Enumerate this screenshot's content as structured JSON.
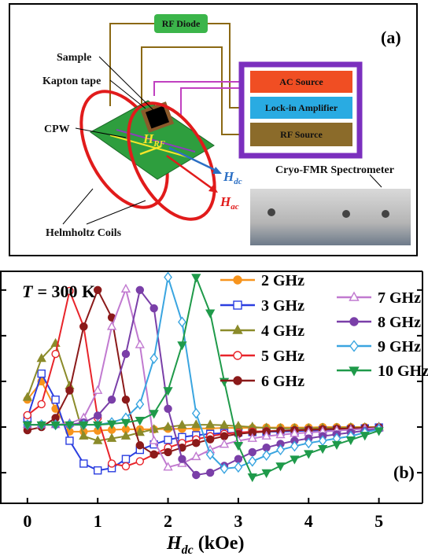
{
  "diagram": {
    "panel_label": "(a)",
    "rf_diode": "RF Diode",
    "sample": "Sample",
    "kapton_tape": "Kapton tape",
    "cpw": "CPW",
    "helmholtz_coils": "Helmholtz Coils",
    "h_rf": {
      "symbol": "H",
      "subscript": "RF"
    },
    "h_dc": {
      "symbol": "H",
      "subscript": "dc"
    },
    "h_ac": {
      "symbol": "H",
      "subscript": "ac"
    },
    "instruments": [
      "AC Source",
      "Lock-in Amplifier",
      "RF Source"
    ],
    "spectrometer": "Cryo-FMR Spectrometer"
  },
  "chart_data": {
    "type": "line",
    "panel_label": "(b)",
    "annotation": {
      "symbol": "T",
      "text": "= 300 K"
    },
    "xlabel": {
      "symbol": "H",
      "subscript": "dc",
      "unit": "(kOe)"
    },
    "x": [
      0,
      0.2,
      0.4,
      0.6,
      0.8,
      1.0,
      1.2,
      1.4,
      1.6,
      1.8,
      2.0,
      2.2,
      2.4,
      2.6,
      2.8,
      3.0,
      3.2,
      3.4,
      3.6,
      3.8,
      4.0,
      4.2,
      4.4,
      4.6,
      4.8,
      5.0
    ],
    "xlim": [
      -0.39,
      5.62
    ],
    "xticks": [
      0,
      1,
      2,
      3,
      4,
      5
    ],
    "ylim": [
      -1.67,
      3.41
    ],
    "yticks": [
      -1,
      0,
      1,
      2,
      3
    ],
    "series": [
      {
        "name": "2 GHz",
        "color": "#f7941d",
        "marker": "circle",
        "filled": true,
        "values": [
          0.6,
          1.0,
          0.4,
          -0.1,
          -0.1,
          -0.08,
          -0.06,
          -0.05,
          -0.05,
          -0.05,
          -0.04,
          -0.04,
          -0.03,
          -0.03,
          -0.02,
          -0.02,
          -0.02,
          -0.01,
          -0.01,
          -0.01,
          -0.01,
          0,
          0,
          0,
          0,
          0
        ]
      },
      {
        "name": "3 GHz",
        "color": "#2b3ee0",
        "marker": "square",
        "filled": false,
        "values": [
          0.2,
          1.17,
          0.6,
          -0.3,
          -0.8,
          -0.95,
          -0.9,
          -0.7,
          -0.5,
          -0.38,
          -0.28,
          -0.22,
          -0.18,
          -0.15,
          -0.13,
          -0.12,
          -0.11,
          -0.1,
          -0.1,
          -0.09,
          -0.08,
          -0.07,
          -0.06,
          -0.05,
          -0.03,
          -0.01
        ]
      },
      {
        "name": "4 GHz",
        "color": "#8b8b2a",
        "marker": "triangle",
        "filled": true,
        "values": [
          0.65,
          1.5,
          1.83,
          0.9,
          -0.2,
          -0.3,
          -0.25,
          -0.2,
          -0.12,
          -0.05,
          0,
          0.04,
          0.05,
          0.05,
          0.04,
          0.02,
          0,
          -0.02,
          -0.03,
          -0.03,
          -0.03,
          -0.02,
          -0.02,
          -0.01,
          -0.01,
          0
        ]
      },
      {
        "name": "5 GHz",
        "color": "#e8242a",
        "marker": "circle",
        "filled": false,
        "values": [
          0.26,
          0.5,
          1.6,
          2.98,
          2.2,
          0.2,
          -0.8,
          -0.86,
          -0.75,
          -0.6,
          -0.45,
          -0.35,
          -0.27,
          -0.2,
          -0.15,
          -0.12,
          -0.1,
          -0.09,
          -0.08,
          -0.07,
          -0.06,
          -0.05,
          -0.04,
          -0.03,
          -0.02,
          -0.01
        ]
      },
      {
        "name": "6 GHz",
        "color": "#8b1a1a",
        "marker": "circle",
        "filled": true,
        "values": [
          -0.07,
          0,
          0.2,
          0.8,
          2.2,
          3.0,
          2.4,
          0.6,
          -0.4,
          -0.6,
          -0.55,
          -0.45,
          -0.35,
          -0.27,
          -0.2,
          -0.15,
          -0.12,
          -0.1,
          -0.08,
          -0.07,
          -0.06,
          -0.05,
          -0.04,
          -0.03,
          -0.02,
          -0.01
        ]
      },
      {
        "name": "7 GHz",
        "color": "#c17ad0",
        "marker": "triangle",
        "filled": false,
        "values": [
          0.05,
          0.05,
          0.05,
          0.08,
          0.2,
          0.8,
          2.2,
          3.02,
          1.8,
          -0.3,
          -0.88,
          -0.8,
          -0.65,
          -0.5,
          -0.38,
          -0.3,
          -0.25,
          -0.2,
          -0.17,
          -0.14,
          -0.12,
          -0.1,
          -0.08,
          -0.06,
          -0.04,
          -0.02
        ]
      },
      {
        "name": "8 GHz",
        "color": "#7a3fa8",
        "marker": "circle",
        "filled": true,
        "values": [
          0.05,
          0.05,
          0.05,
          0.05,
          0.1,
          0.25,
          0.6,
          1.6,
          3.0,
          2.6,
          0.4,
          -0.7,
          -1.05,
          -1.0,
          -0.85,
          -0.7,
          -0.55,
          -0.45,
          -0.37,
          -0.3,
          -0.25,
          -0.2,
          -0.16,
          -0.12,
          -0.08,
          -0.04
        ]
      },
      {
        "name": "9 GHz",
        "color": "#3aa5e0",
        "marker": "diamond",
        "filled": false,
        "values": [
          0.05,
          0.05,
          0.05,
          0.05,
          0.05,
          0.05,
          0.1,
          0.2,
          0.5,
          1.5,
          3.28,
          2.3,
          0.3,
          -0.6,
          -0.91,
          -0.88,
          -0.75,
          -0.62,
          -0.5,
          -0.42,
          -0.35,
          -0.3,
          -0.25,
          -0.2,
          -0.12,
          -0.05
        ]
      },
      {
        "name": "10 GHz",
        "color": "#1f9a4a",
        "marker": "triangle-down",
        "filled": true,
        "values": [
          0.05,
          0.05,
          0.05,
          0.05,
          0.05,
          0.05,
          0.07,
          0.1,
          0.15,
          0.3,
          0.8,
          1.8,
          3.28,
          2.5,
          1.0,
          -0.4,
          -1.09,
          -1.0,
          -0.85,
          -0.7,
          -0.58,
          -0.47,
          -0.38,
          -0.28,
          -0.18,
          -0.08
        ]
      }
    ]
  }
}
